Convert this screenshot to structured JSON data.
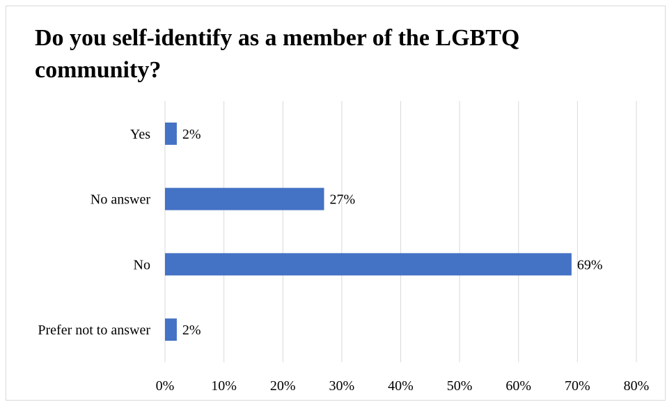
{
  "chart_data": {
    "type": "bar",
    "orientation": "horizontal",
    "title": "Do you self-identify as a member of the LGBTQ community?",
    "categories": [
      "Yes",
      "No answer",
      "No",
      "Prefer not to answer"
    ],
    "values": [
      2,
      27,
      69,
      2
    ],
    "value_labels": [
      "2%",
      "27%",
      "69%",
      "2%"
    ],
    "xlim": [
      0,
      80
    ],
    "xticks": [
      "0%",
      "10%",
      "20%",
      "30%",
      "40%",
      "50%",
      "60%",
      "70%",
      "80%"
    ],
    "xlabel": "",
    "ylabel": "",
    "grid": "vertical",
    "legend": "none",
    "bar_color": "#4472c4",
    "grid_color": "#d9d9d9"
  }
}
